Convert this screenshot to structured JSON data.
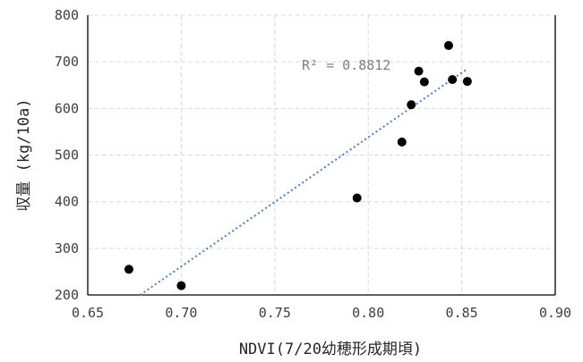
{
  "chart_data": {
    "type": "scatter",
    "title": "",
    "xlabel": "NDVI(7/20幼穂形成期頃)",
    "ylabel": "収量 (kg/10a)",
    "xlim": [
      0.65,
      0.9
    ],
    "ylim": [
      200,
      800
    ],
    "x_ticks": [
      0.65,
      0.7,
      0.75,
      0.8,
      0.85,
      0.9
    ],
    "x_tick_labels": [
      "0.65",
      "0.70",
      "0.75",
      "0.80",
      "0.85",
      "0.90"
    ],
    "y_ticks": [
      200,
      300,
      400,
      500,
      600,
      700,
      800
    ],
    "y_tick_labels": [
      "200",
      "300",
      "400",
      "500",
      "600",
      "700",
      "800"
    ],
    "grid": true,
    "legend": "none",
    "points": [
      {
        "x": 0.672,
        "y": 255
      },
      {
        "x": 0.7,
        "y": 220
      },
      {
        "x": 0.794,
        "y": 408
      },
      {
        "x": 0.818,
        "y": 528
      },
      {
        "x": 0.823,
        "y": 608
      },
      {
        "x": 0.827,
        "y": 680
      },
      {
        "x": 0.83,
        "y": 657
      },
      {
        "x": 0.843,
        "y": 735
      },
      {
        "x": 0.845,
        "y": 662
      },
      {
        "x": 0.853,
        "y": 658
      }
    ],
    "trendline": {
      "type": "linear",
      "from": {
        "x": 0.678,
        "y": 200
      },
      "to": {
        "x": 0.853,
        "y": 685
      },
      "annotation": "R² = 0.8812"
    },
    "colors": {
      "points": "#000000",
      "trendline": "#4a7ebb",
      "grid": "#d9d9d9",
      "axis": "#000000"
    }
  }
}
